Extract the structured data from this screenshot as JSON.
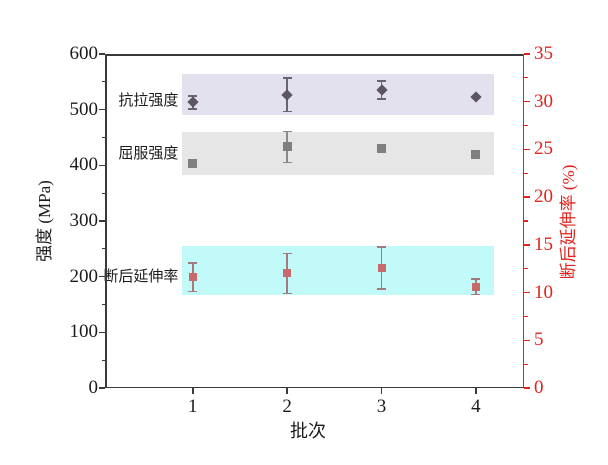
{
  "chart_data": {
    "type": "scatter",
    "xlabel": "批次",
    "ylabel_left": "强度 (MPa)",
    "ylabel_right": "断后延伸率 (%)",
    "x": [
      1,
      2,
      3,
      4
    ],
    "x_range": [
      0.07,
      4.51
    ],
    "left_axis": {
      "min": 0,
      "max": 600,
      "major_step": 100,
      "minor_step": 50,
      "color": "#3a3a3a",
      "label_color": "#1c1c1c"
    },
    "right_axis": {
      "min": 0,
      "max": 35,
      "major_step": 5,
      "minor_step": 2.5,
      "color": "#e2231d",
      "label_color": "#e2231d"
    },
    "band_x_range": [
      0.89,
      4.19
    ],
    "series": [
      {
        "key": "tensile-strength",
        "name": "抗拉强度",
        "axis": "left",
        "marker": "diamond",
        "marker_size": 8,
        "marker_color": "#5c5460",
        "error_color": "#6b6370",
        "values": [
          513,
          527,
          535,
          522
        ],
        "errors": [
          12,
          30,
          16,
          0
        ],
        "band": {
          "from": 491,
          "to": 564,
          "color": "#e4e1ee"
        },
        "label_at": 515
      },
      {
        "key": "yield-strength",
        "name": "屈服强度",
        "axis": "left",
        "marker": "square",
        "marker_size": 9,
        "marker_color": "#7f7f7f",
        "error_color": "#8a8a8a",
        "values": [
          404,
          433,
          431,
          420
        ],
        "errors": [
          0,
          28,
          0,
          0
        ],
        "band": {
          "from": 383,
          "to": 460,
          "color": "#e6e6e6"
        },
        "label_at": 420
      },
      {
        "key": "elongation",
        "name": "断后延伸率",
        "axis": "right",
        "marker": "square",
        "marker_size": 8,
        "marker_color": "#c8696b",
        "error_color": "#a57a7c",
        "values": [
          11.6,
          12.0,
          12.6,
          10.6
        ],
        "errors": [
          1.5,
          2.1,
          2.2,
          0.8
        ],
        "band": {
          "from": 9.7,
          "to": 14.9,
          "color": "#c2f9f9"
        },
        "label_at": 11.6
      }
    ]
  }
}
